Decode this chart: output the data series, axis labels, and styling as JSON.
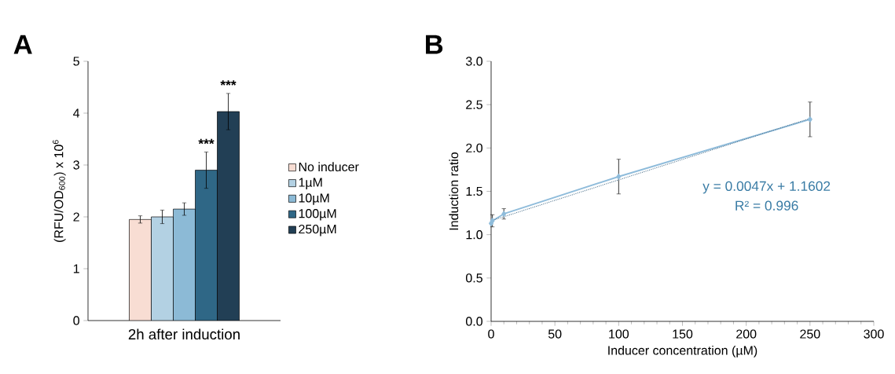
{
  "chart_data": [
    {
      "type": "bar",
      "title": "A",
      "ylabel": "(RFU/OD$_{600}$) x 10$^{6}$",
      "categories": [
        "2h after induction"
      ],
      "series": [
        {
          "name": "No inducer",
          "color": "#f8ddd3",
          "values": [
            1.95
          ],
          "errors": [
            0.07
          ]
        },
        {
          "name": "1µM",
          "color": "#b3d1e3",
          "values": [
            2.0
          ],
          "errors": [
            0.13
          ]
        },
        {
          "name": "10µM",
          "color": "#8cbad6",
          "values": [
            2.15
          ],
          "errors": [
            0.12
          ]
        },
        {
          "name": "100µM",
          "color": "#2f6786",
          "values": [
            2.9
          ],
          "errors": [
            0.35
          ]
        },
        {
          "name": "250µM",
          "color": "#223f55",
          "values": [
            4.03
          ],
          "errors": [
            0.35
          ]
        }
      ],
      "ylim": [
        0,
        5
      ],
      "yticks": [
        0,
        1,
        2,
        3,
        4,
        5
      ],
      "legend": "right",
      "annotations": [
        "***",
        "***"
      ]
    },
    {
      "type": "line",
      "title": "B",
      "xlabel": "Inducer concentration (µM)",
      "ylabel": "Induction ratio",
      "series": [
        {
          "type": "line",
          "color": "#8fbcdb",
          "x": [
            0,
            1,
            10,
            100,
            250
          ],
          "values": [
            1.13,
            1.16,
            1.24,
            1.67,
            2.33
          ],
          "errors": [
            null,
            0.07,
            0.06,
            0.2,
            0.2
          ],
          "marker": "diamond",
          "line_style": "solid"
        },
        {
          "type": "line",
          "color": "#4a6f8a",
          "x": [
            0,
            250
          ],
          "values": [
            1.16,
            2.34
          ],
          "marker": "none",
          "line_style": "dotted"
        }
      ],
      "xlim": [
        0,
        300
      ],
      "xticks": [
        0,
        50,
        100,
        150,
        200,
        250,
        300
      ],
      "ylim": [
        0,
        3
      ],
      "yticks": [
        {
          "value": 0,
          "label": "0.0"
        },
        {
          "value": 0.5,
          "label": "0.5"
        },
        {
          "value": 1,
          "label": "1.0"
        },
        {
          "value": 1.5,
          "label": "1.5"
        },
        {
          "value": 2,
          "label": "2.0"
        },
        {
          "value": 2.5,
          "label": "2.5"
        },
        {
          "value": 3,
          "label": "3.0"
        }
      ],
      "annotations": [
        "y = 0.0047x + 1.1602",
        "R² = 0.996"
      ],
      "legend": false
    }
  ]
}
